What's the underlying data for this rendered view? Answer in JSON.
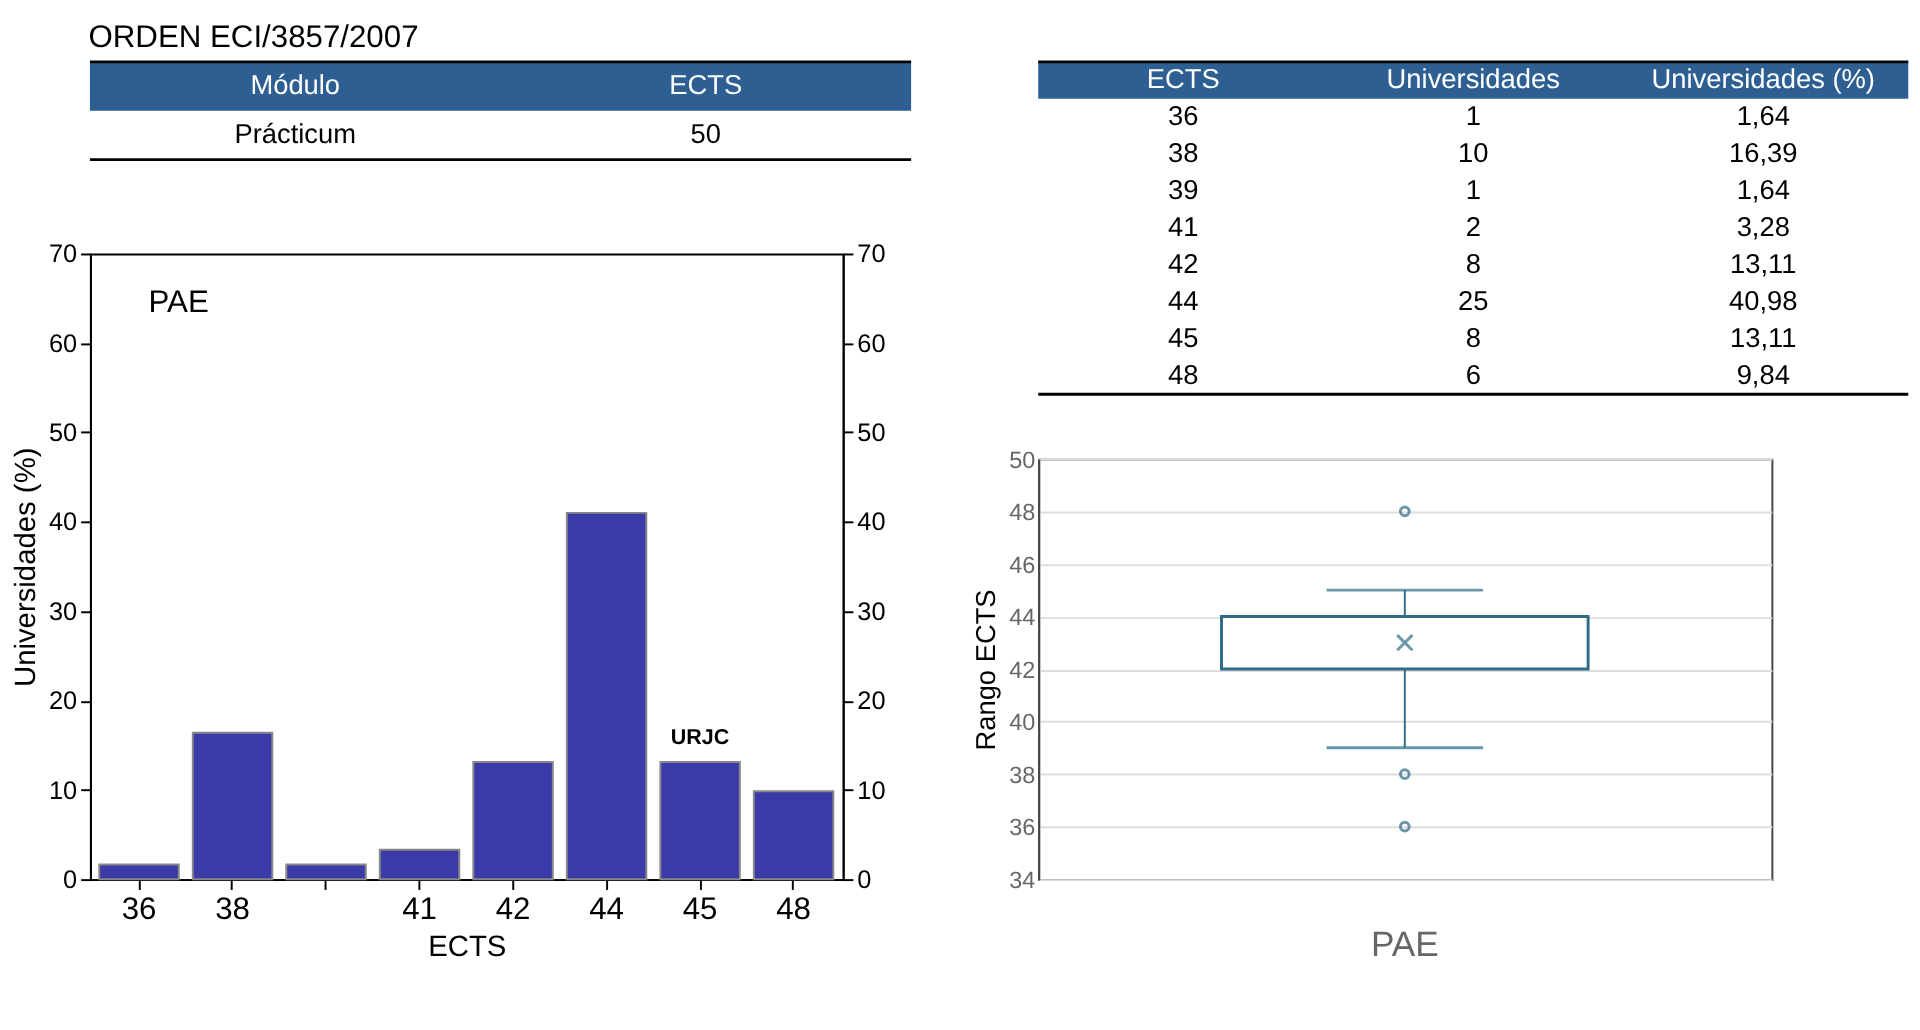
{
  "chart_data": [
    {
      "type": "other",
      "title": "ORDEN ECI/3857/2007",
      "categories": [
        "Módulo",
        "ECTS"
      ],
      "annotations": [
        "Prácticum",
        "50"
      ]
    },
    {
      "type": "bar",
      "categories": [
        "36",
        "38",
        null,
        "41",
        "42",
        "44",
        "45",
        "48"
      ],
      "values": [
        1.64,
        16.39,
        1.64,
        3.28,
        13.11,
        40.98,
        13.11,
        9.84
      ],
      "color": "#3a3aa8",
      "xlabel": "ECTS",
      "ylabel": "Universidades (%)",
      "ylim": [
        0,
        70
      ],
      "yticks": [
        0,
        10,
        20,
        30,
        40,
        50,
        60,
        70
      ],
      "y2lim": [
        0,
        70
      ],
      "y2ticks": [
        0,
        10,
        20,
        30,
        40,
        50,
        60,
        70
      ],
      "annotations": [
        "PAE",
        {
          "text": "URJC",
          "x": "45",
          "y": 13.11
        }
      ],
      "grid": false
    },
    {
      "type": "other",
      "categories": [
        "ECTS",
        "Universidades",
        "Universidades (%)"
      ],
      "annotations": [
        "36",
        "1",
        "1,64",
        "38",
        "10",
        "16,39",
        "39",
        "1",
        "1,64",
        "41",
        "2",
        "3,28",
        "42",
        "8",
        "13,11",
        "44",
        "25",
        "40,98",
        "45",
        "8",
        "13,11",
        "48",
        "6",
        "9,84"
      ]
    },
    {
      "type": "box",
      "categories": [
        "PAE"
      ],
      "ylabel": "Rango ECTS",
      "color": "#2e6b85",
      "ylim": [
        34,
        50
      ],
      "yticks": [
        34,
        36,
        38,
        40,
        42,
        44,
        46,
        48,
        50
      ],
      "grid": "y",
      "boxes": [
        {
          "low": 39,
          "q1": 42,
          "median": 44,
          "q3": 44,
          "high": 45,
          "mean": 43,
          "outliers": [
            36,
            38,
            48
          ]
        }
      ]
    }
  ]
}
